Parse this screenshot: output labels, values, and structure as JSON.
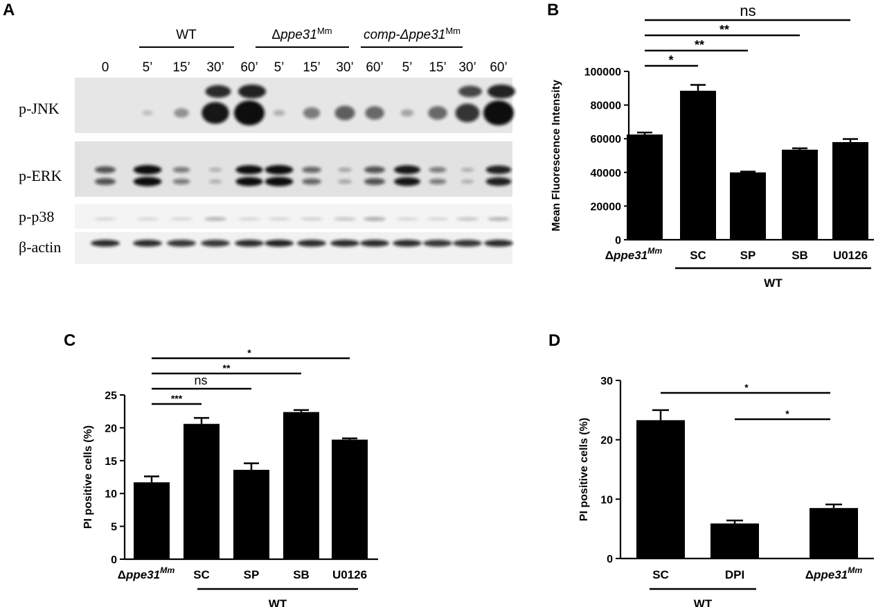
{
  "panels": {
    "A": {
      "letter": "A",
      "groups": [
        {
          "label": "WT",
          "italic": false,
          "sup": ""
        },
        {
          "label_prefix": "Δ",
          "label": "ppe31",
          "italic": true,
          "sup": "Mm"
        },
        {
          "label_prefix": "",
          "label": "comp-Δppe31",
          "italic": true,
          "sup": "Mm"
        }
      ],
      "timepoints": [
        "0",
        "5’",
        "15’",
        "30’",
        "60’",
        "5’",
        "15’",
        "30’",
        "60’",
        "5’",
        "15’",
        "30’",
        "60’"
      ],
      "blot_labels": [
        "p-JNK",
        "p-ERK",
        "p-p38",
        "β-actin"
      ],
      "intensities": {
        "p-JNK": [
          0.02,
          0.04,
          0.25,
          0.85,
          1.0,
          0.1,
          0.35,
          0.5,
          0.45,
          0.15,
          0.45,
          0.7,
          1.0
        ],
        "p-ERK": [
          0.55,
          0.95,
          0.35,
          0.1,
          0.9,
          0.95,
          0.45,
          0.15,
          0.55,
          0.85,
          0.35,
          0.1,
          0.8
        ],
        "p-p38": [
          0.05,
          0.05,
          0.05,
          0.25,
          0.05,
          0.05,
          0.08,
          0.15,
          0.3,
          0.05,
          0.05,
          0.15,
          0.25
        ],
        "β-actin": [
          0.75,
          0.75,
          0.7,
          0.7,
          0.75,
          0.8,
          0.75,
          0.75,
          0.75,
          0.75,
          0.7,
          0.7,
          0.75
        ]
      }
    },
    "B": {
      "letter": "B",
      "wt_label": "WT",
      "brackets": [
        {
          "from": 0,
          "to": 1,
          "label": "*"
        },
        {
          "from": 0,
          "to": 2,
          "label": "**"
        },
        {
          "from": 0,
          "to": 3,
          "label": "**"
        },
        {
          "from": 0,
          "to": 4,
          "label": "ns"
        }
      ]
    },
    "C": {
      "letter": "C",
      "wt_label": "WT",
      "brackets": [
        {
          "from": 0,
          "to": 1,
          "label": "***"
        },
        {
          "from": 0,
          "to": 2,
          "label": "ns"
        },
        {
          "from": 0,
          "to": 3,
          "label": "**"
        },
        {
          "from": 0,
          "to": 4,
          "label": "*"
        }
      ]
    },
    "D": {
      "letter": "D",
      "wt_label": "WT",
      "brackets": [
        {
          "from": 0,
          "to": 2,
          "label": "*"
        },
        {
          "from": 1,
          "to": 2,
          "label": "*"
        }
      ]
    }
  },
  "chart_data": [
    {
      "panel": "B",
      "type": "bar",
      "categories": [
        "Δppe31Mm",
        "SC",
        "SP",
        "SB",
        "U0126"
      ],
      "values": [
        62500,
        88500,
        40000,
        53500,
        58000
      ],
      "errors": [
        1200,
        3500,
        500,
        800,
        1800
      ],
      "ylabel": "Mean Fluorescence Intensity",
      "ylim": [
        0,
        100000
      ],
      "yticks": [
        0,
        20000,
        40000,
        60000,
        80000,
        100000
      ],
      "bar_color": "#000000"
    },
    {
      "panel": "C",
      "type": "bar",
      "categories": [
        "Δppe31Mm",
        "SC",
        "SP",
        "SB",
        "U0126"
      ],
      "values": [
        11.7,
        20.6,
        13.6,
        22.4,
        18.2
      ],
      "errors": [
        0.9,
        0.9,
        1.0,
        0.3,
        0.2
      ],
      "ylabel": "PI positive cells (%)",
      "ylim": [
        0,
        25
      ],
      "yticks": [
        0,
        5,
        10,
        15,
        20,
        25
      ],
      "bar_color": "#000000"
    },
    {
      "panel": "D",
      "type": "bar",
      "categories": [
        "SC",
        "DPI",
        "Δppe31Mm"
      ],
      "values": [
        23.3,
        5.9,
        8.5
      ],
      "errors": [
        1.7,
        0.5,
        0.6
      ],
      "ylabel": "PI positive cells (%)",
      "ylim": [
        0,
        30
      ],
      "yticks": [
        0,
        10,
        20,
        30
      ],
      "bar_color": "#000000"
    }
  ]
}
